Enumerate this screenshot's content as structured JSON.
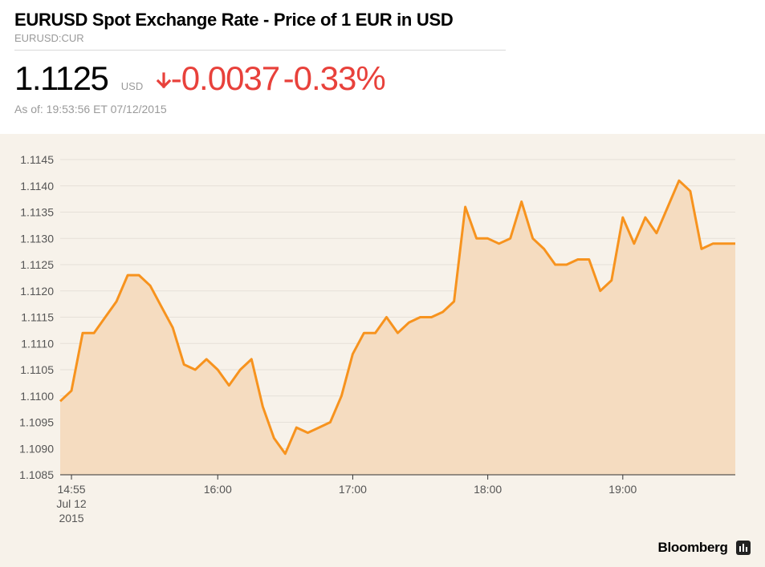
{
  "header": {
    "title": "EURUSD Spot Exchange Rate - Price of 1 EUR in USD",
    "ticker": "EURUSD:CUR"
  },
  "quote": {
    "price": "1.1125",
    "unit": "USD",
    "change": "-0.0037",
    "change_pct": "-0.33%",
    "direction": "down",
    "as_of": "As of: 19:53:56 ET 07/12/2015"
  },
  "brand": {
    "name": "Bloomberg",
    "icon": "bloomberg-terminal-icon"
  },
  "colors": {
    "line": "#f7931e",
    "fill": "#f5dcc0",
    "background": "#f7f2ea",
    "negative": "#e8413b",
    "grid": "#e6e0d8"
  },
  "chart_data": {
    "type": "area",
    "x_unit": "time (ET), Jul 12 2015",
    "xlim": [
      "14:55",
      "19:50"
    ],
    "ylim": [
      1.1085,
      1.1145
    ],
    "grid": true,
    "y_ticks": [
      "1.1085",
      "1.1090",
      "1.1095",
      "1.1100",
      "1.1105",
      "1.1110",
      "1.1115",
      "1.1120",
      "1.1125",
      "1.1130",
      "1.1135",
      "1.1140",
      "1.1145"
    ],
    "x_ticks": [
      {
        "value": "14:55",
        "label": "14:55",
        "sublabel1": "Jul 12",
        "sublabel2": "2015"
      },
      {
        "value": "16:00",
        "label": "16:00"
      },
      {
        "value": "17:00",
        "label": "17:00"
      },
      {
        "value": "18:00",
        "label": "18:00"
      },
      {
        "value": "19:00",
        "label": "19:00"
      }
    ],
    "x": [
      "14:50",
      "14:55",
      "15:00",
      "15:05",
      "15:10",
      "15:15",
      "15:20",
      "15:25",
      "15:30",
      "15:35",
      "15:40",
      "15:45",
      "15:50",
      "15:55",
      "16:00",
      "16:05",
      "16:10",
      "16:15",
      "16:20",
      "16:25",
      "16:30",
      "16:35",
      "16:40",
      "16:45",
      "16:50",
      "16:55",
      "17:00",
      "17:05",
      "17:10",
      "17:15",
      "17:20",
      "17:25",
      "17:30",
      "17:35",
      "17:40",
      "17:45",
      "17:50",
      "17:55",
      "18:00",
      "18:05",
      "18:10",
      "18:15",
      "18:20",
      "18:25",
      "18:30",
      "18:35",
      "18:40",
      "18:45",
      "18:50",
      "18:55",
      "19:00",
      "19:05",
      "19:10",
      "19:15",
      "19:20",
      "19:25",
      "19:30",
      "19:35",
      "19:40",
      "19:45",
      "19:50"
    ],
    "values": [
      1.1099,
      1.1101,
      1.1112,
      1.1112,
      1.1115,
      1.1118,
      1.1123,
      1.1123,
      1.1121,
      1.1117,
      1.1113,
      1.1106,
      1.1105,
      1.1107,
      1.1105,
      1.1102,
      1.1105,
      1.1107,
      1.1098,
      1.1092,
      1.1089,
      1.1094,
      1.1093,
      1.1094,
      1.1095,
      1.11,
      1.1108,
      1.1112,
      1.1112,
      1.1115,
      1.1112,
      1.1114,
      1.1115,
      1.1115,
      1.1116,
      1.1118,
      1.1136,
      1.113,
      1.113,
      1.1129,
      1.113,
      1.1137,
      1.113,
      1.1128,
      1.1125,
      1.1125,
      1.1126,
      1.1126,
      1.112,
      1.1122,
      1.1134,
      1.1129,
      1.1134,
      1.1131,
      1.1136,
      1.1141,
      1.1139,
      1.1128,
      1.1129,
      1.1129,
      1.1129
    ]
  }
}
